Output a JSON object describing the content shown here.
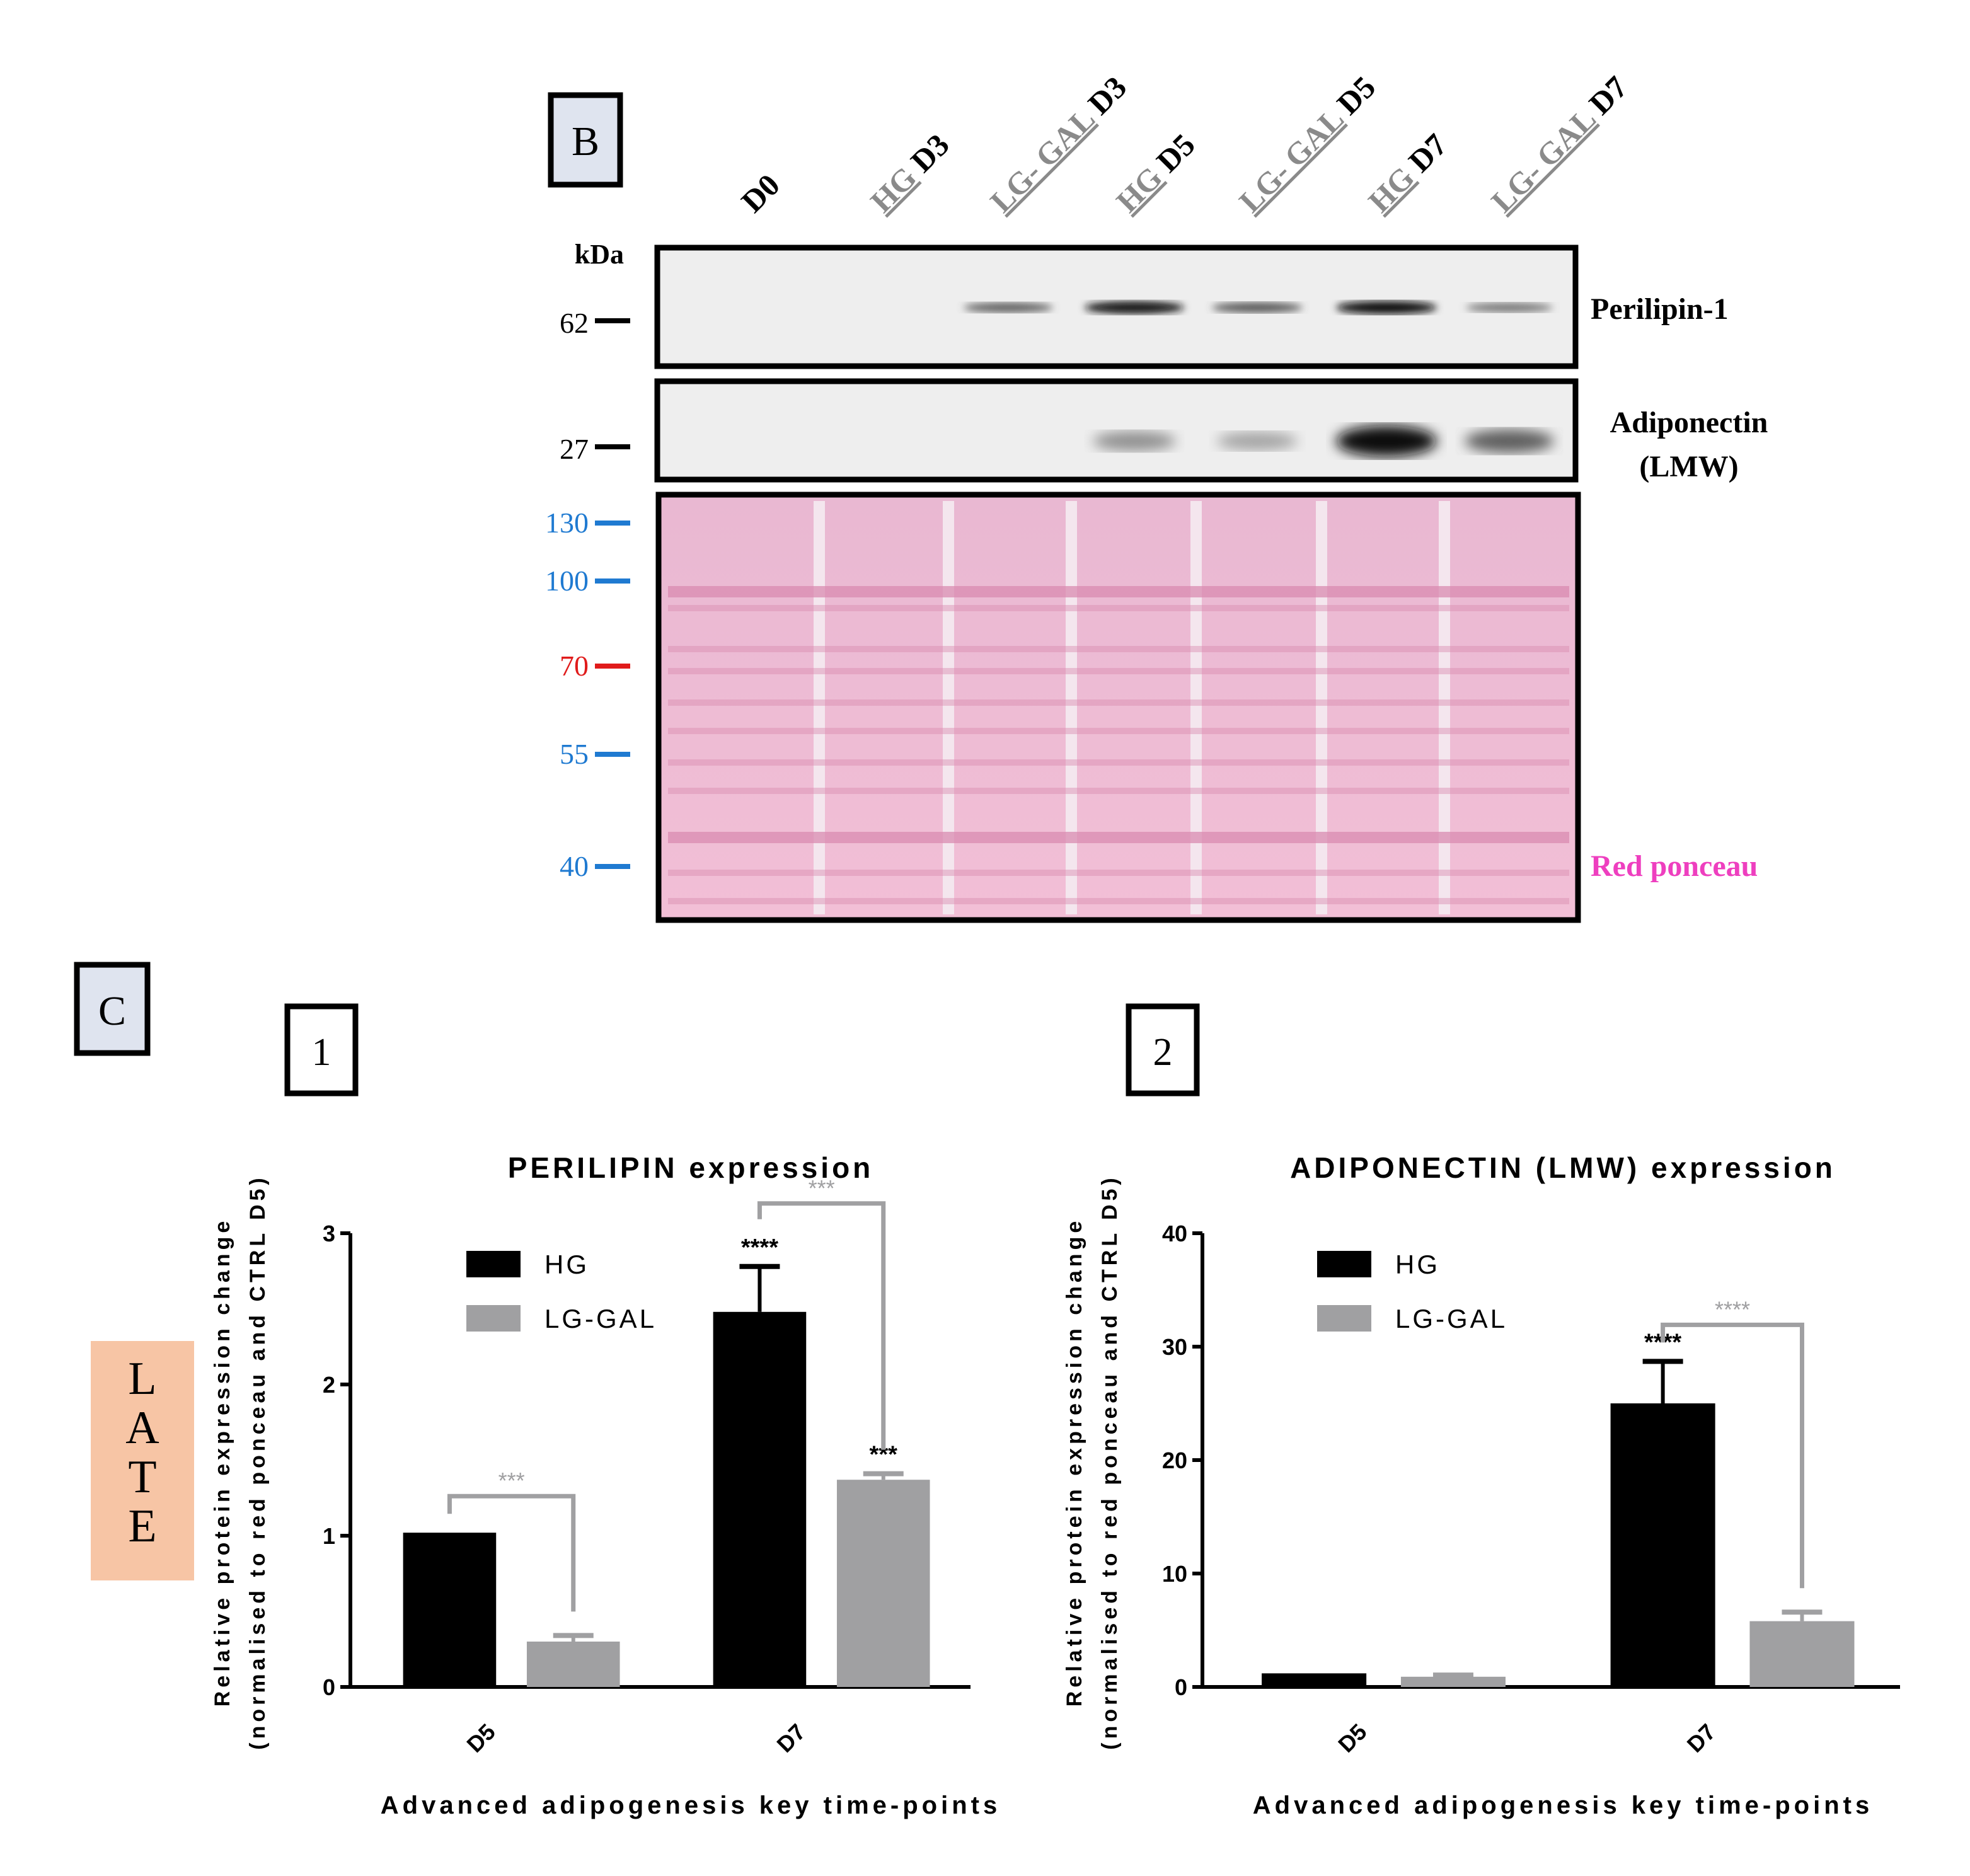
{
  "panel_b": {
    "label": "B",
    "lanes": [
      {
        "pre": "",
        "under": "",
        "bold": "D0"
      },
      {
        "pre": "",
        "under": "HG",
        "bold": " D3"
      },
      {
        "pre": "",
        "under": "LG- GAL",
        "bold": " D3"
      },
      {
        "pre": "",
        "under": "HG",
        "bold": " D5"
      },
      {
        "pre": "",
        "under": "LG- GAL",
        "bold": " D5"
      },
      {
        "pre": "",
        "under": "HG",
        "bold": " D7"
      },
      {
        "pre": "",
        "under": "LG- GAL",
        "bold": " D7"
      }
    ],
    "kda_label": "kDa",
    "blots": [
      {
        "name": "Perilipin-1",
        "name_lines": [
          "Perilipin-1"
        ],
        "marker": "62",
        "band_intensity": [
          0,
          0,
          0.55,
          0.95,
          0.6,
          1.0,
          0.45
        ]
      },
      {
        "name": "Adiponectin (LMW)",
        "name_lines": [
          "Adiponectin",
          "(LMW)"
        ],
        "marker": "27",
        "band_intensity": [
          0,
          0,
          0,
          0.3,
          0.2,
          1.0,
          0.55
        ]
      }
    ],
    "ponceau": {
      "label": "Red ponceau",
      "label_color": "#ee3fbf",
      "markers": [
        {
          "value": "130",
          "color": "#1f7ad1"
        },
        {
          "value": "100",
          "color": "#1f7ad1"
        },
        {
          "value": "70",
          "color": "#e01b1b"
        },
        {
          "value": "55",
          "color": "#1f7ad1"
        },
        {
          "value": "40",
          "color": "#1f7ad1"
        }
      ]
    }
  },
  "panel_c": {
    "label": "C",
    "side_tag": [
      "L",
      "A",
      "T",
      "E"
    ],
    "side_tag_color": "#f7c5a5"
  },
  "chart_data": [
    {
      "panel": "1",
      "type": "bar",
      "title": "PERILIPIN expression",
      "ylabel": "Relative protein expression change",
      "ylabel2": "(normalised to red ponceau and CTRL D5)",
      "xlabel": "Advanced adipogenesis key time-points",
      "categories": [
        "D5",
        "D7"
      ],
      "series": [
        {
          "name": "HG",
          "color": "#000000",
          "values": [
            1.02,
            2.48
          ],
          "errors": [
            0.0,
            0.3
          ]
        },
        {
          "name": "LG-GAL",
          "color": "#a0a0a2",
          "values": [
            0.3,
            1.37
          ],
          "errors": [
            0.04,
            0.04
          ]
        }
      ],
      "ylim": [
        0,
        3
      ],
      "yticks": [
        "0",
        "1",
        "2",
        "3"
      ],
      "legend_position": "top-left",
      "annotations": [
        {
          "text": "****",
          "over": [
            1,
            0
          ],
          "kind": "stars"
        },
        {
          "text": "***",
          "over": [
            1,
            1
          ],
          "kind": "stars"
        },
        {
          "text": "***",
          "between": [
            0,
            0,
            1
          ],
          "kind": "bracket",
          "color": "#a0a0a2"
        },
        {
          "text": "***",
          "between": [
            1,
            0,
            1
          ],
          "kind": "bracket",
          "color": "#a0a0a2"
        }
      ]
    },
    {
      "panel": "2",
      "type": "bar",
      "title": "ADIPONECTIN (LMW) expression",
      "ylabel": "Relative protein expression change",
      "ylabel2": "(normalised to red ponceau and CTRL D5)",
      "xlabel": "Advanced adipogenesis key time-points",
      "categories": [
        "D5",
        "D7"
      ],
      "series": [
        {
          "name": "HG",
          "color": "#000000",
          "values": [
            1.2,
            25.0
          ],
          "errors": [
            0.0,
            3.7
          ]
        },
        {
          "name": "LG-GAL",
          "color": "#a0a0a2",
          "values": [
            0.9,
            5.8
          ],
          "errors": [
            0.15,
            0.8
          ]
        }
      ],
      "ylim": [
        0,
        40
      ],
      "yticks": [
        "0",
        "10",
        "20",
        "30",
        "40"
      ],
      "legend_position": "top-left",
      "annotations": [
        {
          "text": "****",
          "over": [
            1,
            0
          ],
          "kind": "stars"
        },
        {
          "text": "****",
          "between": [
            1,
            0,
            1
          ],
          "kind": "bracket",
          "color": "#a0a0a2"
        }
      ]
    }
  ]
}
